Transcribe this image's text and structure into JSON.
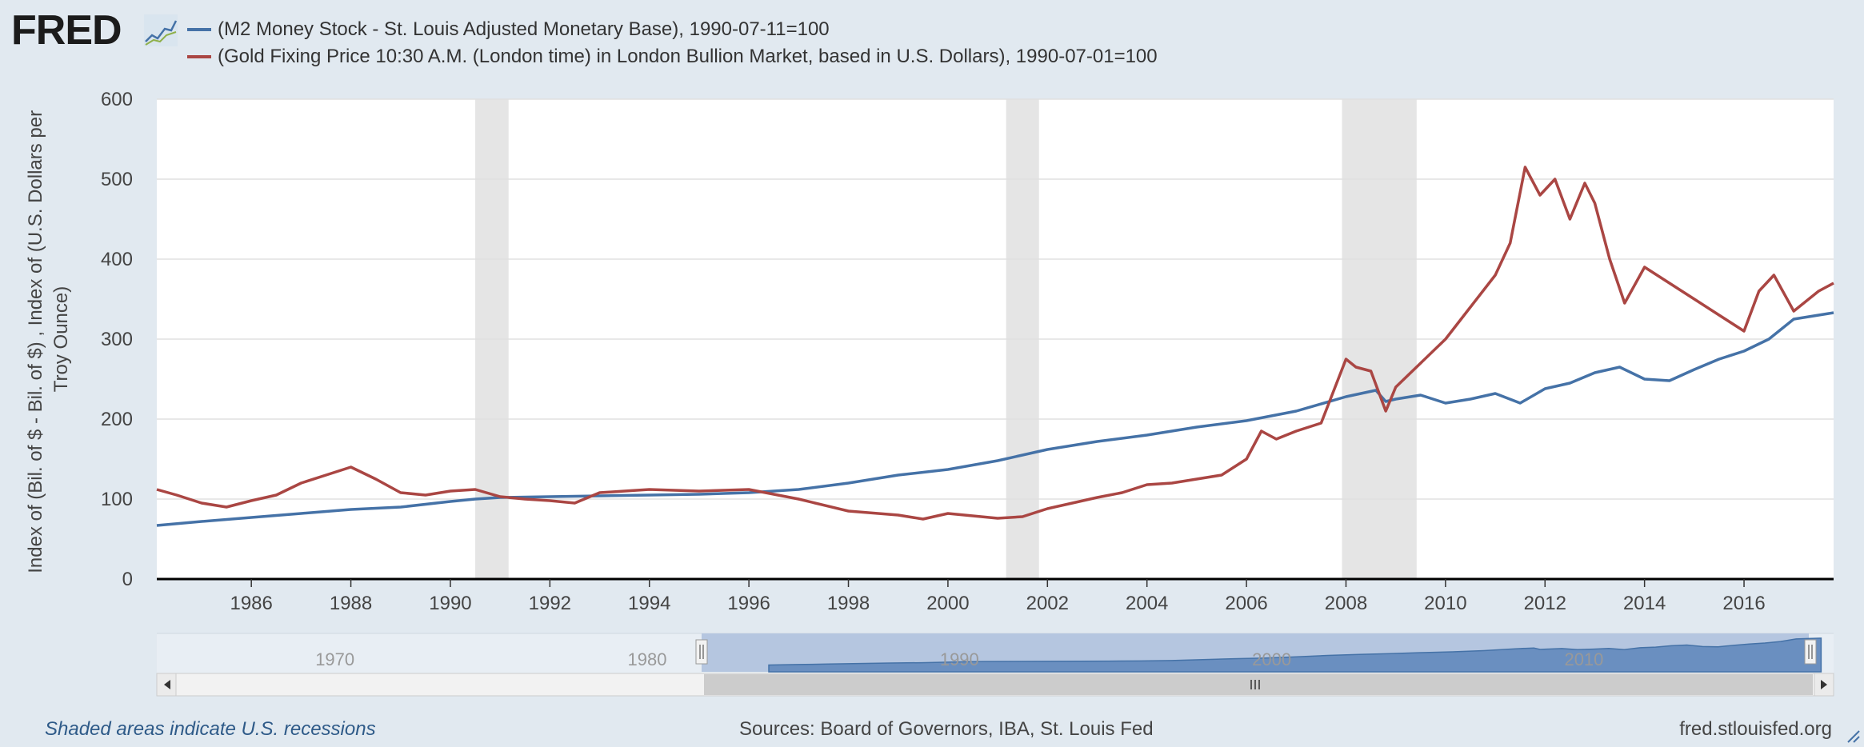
{
  "header": {
    "logo_text": "FRED",
    "legend": [
      {
        "label": "(M2 Money Stock - St. Louis Adjusted Monetary Base), 1990-07-11=100",
        "color": "#4572a7"
      },
      {
        "label": "(Gold Fixing Price 10:30 A.M. (London time) in London Bullion Market, based in U.S. Dollars), 1990-07-01=100",
        "color": "#aa4643"
      }
    ]
  },
  "chart_data": {
    "type": "line",
    "ylabel_lines": [
      "Index of (Bil. of $ - Bil. of $) , Index of (U.S. Dollars per",
      "Troy Ounce)"
    ],
    "ylim": [
      0,
      600
    ],
    "y_ticks": [
      "0",
      "100",
      "200",
      "300",
      "400",
      "500",
      "600"
    ],
    "xlim": [
      1984.1,
      2017.8
    ],
    "x_ticks": [
      "1986",
      "1988",
      "1990",
      "1992",
      "1994",
      "1996",
      "1998",
      "2000",
      "2002",
      "2004",
      "2006",
      "2008",
      "2010",
      "2012",
      "2014",
      "2016"
    ],
    "grid": true,
    "recessions": [
      [
        1990.5,
        1991.17
      ],
      [
        2001.17,
        2001.83
      ],
      [
        2007.92,
        2009.42
      ]
    ],
    "series": [
      {
        "name": "(M2 Money Stock - St. Louis Adjusted Monetary Base), 1990-07-11=100",
        "color": "#4572a7",
        "x": [
          1984.1,
          1985,
          1986,
          1987,
          1988,
          1989,
          1990,
          1990.5,
          1991,
          1992,
          1993,
          1994,
          1995,
          1996,
          1997,
          1998,
          1999,
          2000,
          2001,
          2002,
          2003,
          2004,
          2005,
          2006,
          2007,
          2008,
          2008.6,
          2008.8,
          2009,
          2009.5,
          2010,
          2010.5,
          2011,
          2011.5,
          2012,
          2012.5,
          2013,
          2013.5,
          2014,
          2014.5,
          2015,
          2015.5,
          2016,
          2016.5,
          2017,
          2017.5,
          2017.8
        ],
        "y": [
          67,
          72,
          77,
          82,
          87,
          90,
          97,
          100,
          102,
          103,
          104,
          105,
          106,
          108,
          112,
          120,
          130,
          137,
          148,
          162,
          172,
          180,
          190,
          198,
          210,
          228,
          236,
          222,
          225,
          230,
          220,
          225,
          232,
          220,
          238,
          245,
          258,
          265,
          250,
          248,
          262,
          275,
          285,
          300,
          325,
          330,
          333
        ]
      },
      {
        "name": "(Gold Fixing Price 10:30 A.M. (London time) in London Bullion Market, based in U.S. Dollars), 1990-07-01=100",
        "color": "#aa4643",
        "x": [
          1984.1,
          1984.5,
          1985,
          1985.5,
          1986,
          1986.5,
          1987,
          1987.5,
          1988,
          1988.5,
          1989,
          1989.5,
          1990,
          1990.5,
          1991,
          1991.5,
          1992,
          1992.5,
          1993,
          1993.5,
          1994,
          1995,
          1996,
          1997,
          1998,
          1999,
          1999.5,
          2000,
          2001,
          2001.5,
          2002,
          2002.5,
          2003,
          2003.5,
          2004,
          2004.5,
          2005,
          2005.5,
          2006,
          2006.3,
          2006.6,
          2007,
          2007.5,
          2008,
          2008.2,
          2008.5,
          2008.8,
          2009,
          2009.5,
          2010,
          2010.5,
          2011,
          2011.3,
          2011.6,
          2011.9,
          2012.2,
          2012.5,
          2012.8,
          2013,
          2013.3,
          2013.6,
          2014,
          2014.5,
          2015,
          2015.5,
          2016,
          2016.3,
          2016.6,
          2017,
          2017.5,
          2017.8
        ],
        "y": [
          112,
          105,
          95,
          90,
          98,
          105,
          120,
          130,
          140,
          125,
          108,
          105,
          110,
          112,
          103,
          100,
          98,
          95,
          108,
          110,
          112,
          110,
          112,
          100,
          85,
          80,
          75,
          82,
          76,
          78,
          88,
          95,
          102,
          108,
          118,
          120,
          125,
          130,
          150,
          185,
          175,
          185,
          195,
          275,
          265,
          260,
          210,
          240,
          270,
          300,
          340,
          380,
          420,
          515,
          480,
          500,
          450,
          495,
          470,
          400,
          345,
          390,
          370,
          350,
          330,
          310,
          360,
          380,
          335,
          360,
          370
        ]
      }
    ],
    "navigator_ticks": [
      "1970",
      "1980",
      "1990",
      "2000",
      "2010"
    ]
  },
  "footer": {
    "note": "Shaded areas indicate U.S. recessions",
    "sources": "Sources: Board of Governors, IBA, St. Louis Fed",
    "site": "fred.stlouisfed.org"
  }
}
